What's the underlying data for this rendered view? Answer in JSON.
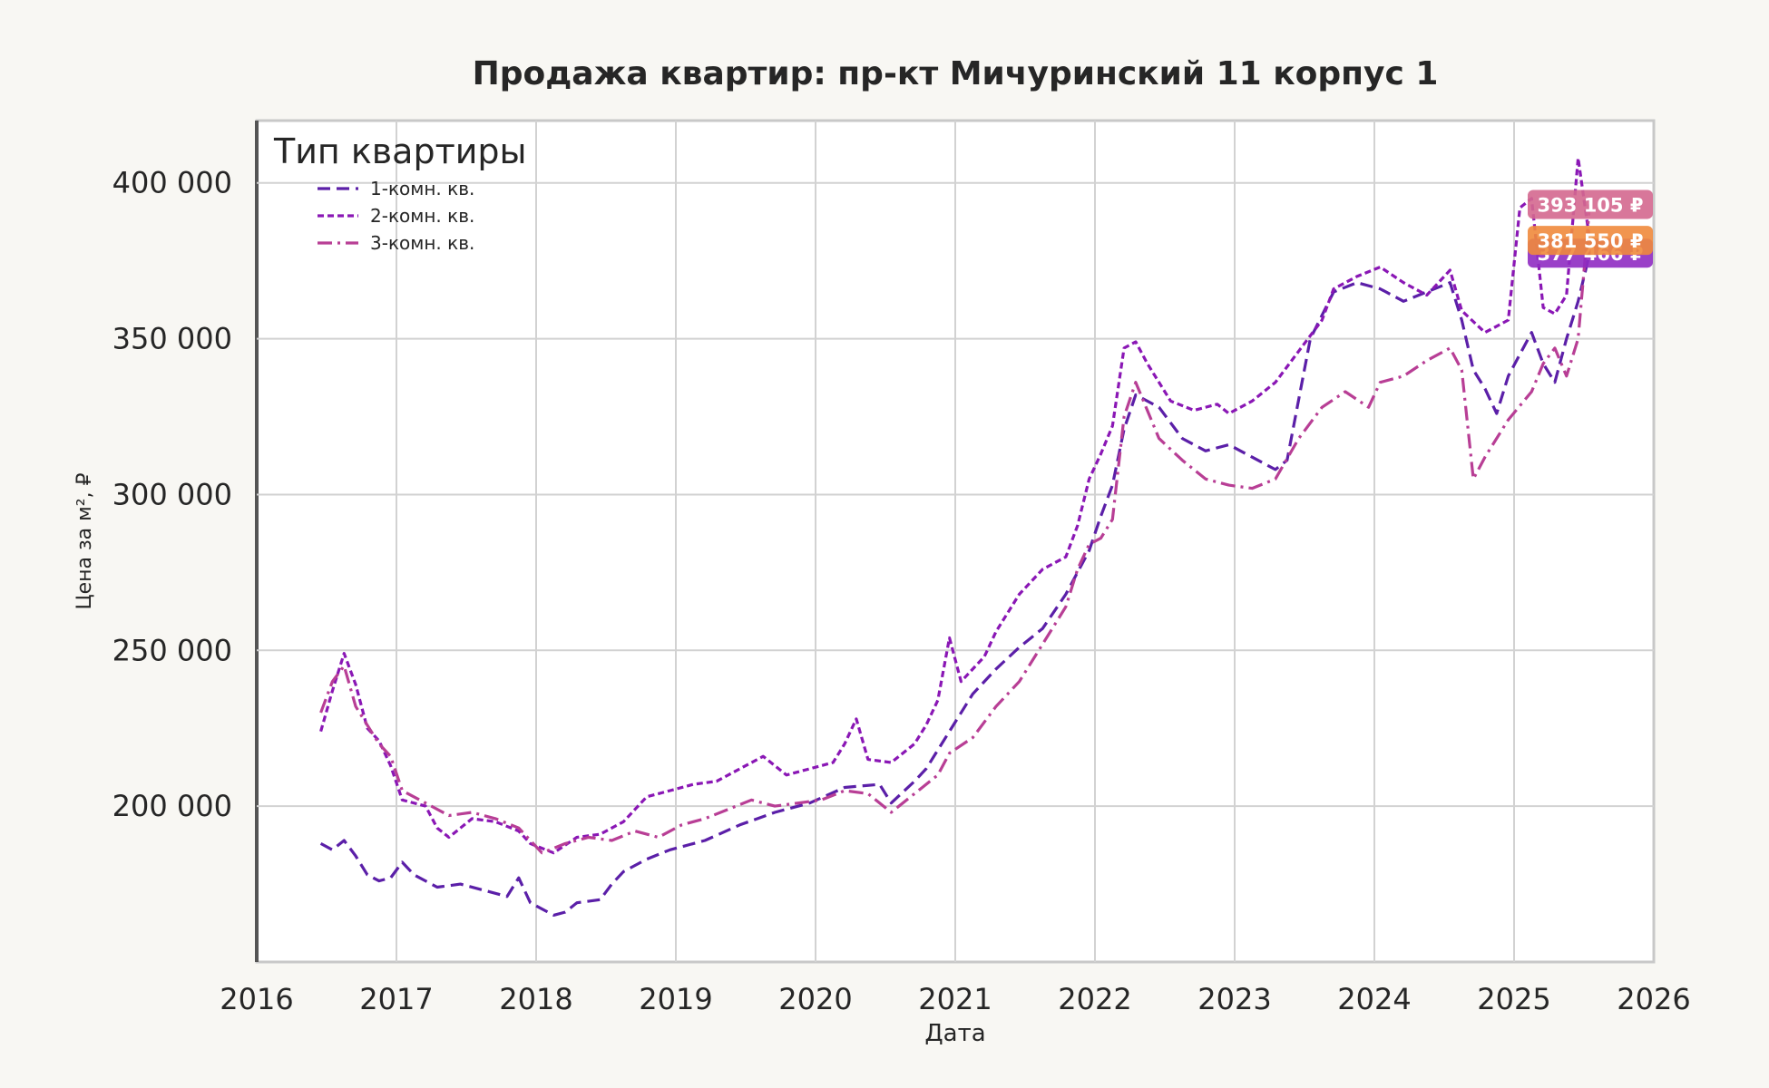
{
  "chart_data": {
    "type": "line",
    "title": "Продажа квартир: пр-кт Мичуринский 11 корпус 1",
    "xlabel": "Дата",
    "ylabel": "Цена за м², ₽",
    "xlim": [
      2016,
      2026
    ],
    "ylim": [
      150000,
      420000
    ],
    "x_ticks": [
      "2016",
      "2017",
      "2018",
      "2019",
      "2020",
      "2021",
      "2022",
      "2023",
      "2024",
      "2025",
      "2026"
    ],
    "y_ticks": [
      200000,
      250000,
      300000,
      350000,
      400000
    ],
    "y_tick_labels": [
      "200 000",
      "250 000",
      "300 000",
      "350 000",
      "400 000"
    ],
    "grid": true,
    "legend": {
      "title": "Тип квартиры",
      "placement": "top-left"
    },
    "series": [
      {
        "name": "1-комн. кв.",
        "color": "#5b1fa8",
        "dash": "dashed",
        "end_label": "377 466 ₽",
        "points": [
          [
            "2016-06",
            188000
          ],
          [
            "2016-07",
            186000
          ],
          [
            "2016-08",
            189000
          ],
          [
            "2016-09",
            184000
          ],
          [
            "2016-10",
            178000
          ],
          [
            "2016-11",
            176000
          ],
          [
            "2016-12",
            177000
          ],
          [
            "2017-01",
            182000
          ],
          [
            "2017-02",
            178000
          ],
          [
            "2017-04",
            174000
          ],
          [
            "2017-06",
            175000
          ],
          [
            "2017-08",
            173000
          ],
          [
            "2017-10",
            171000
          ],
          [
            "2017-11",
            177000
          ],
          [
            "2017-12",
            169000
          ],
          [
            "2018-02",
            165000
          ],
          [
            "2018-03",
            166000
          ],
          [
            "2018-04",
            169000
          ],
          [
            "2018-06",
            170000
          ],
          [
            "2018-07",
            175000
          ],
          [
            "2018-08",
            179000
          ],
          [
            "2018-10",
            183000
          ],
          [
            "2018-12",
            186000
          ],
          [
            "2019-03",
            189000
          ],
          [
            "2019-06",
            194000
          ],
          [
            "2019-09",
            198000
          ],
          [
            "2019-12",
            201000
          ],
          [
            "2020-03",
            206000
          ],
          [
            "2020-06",
            207000
          ],
          [
            "2020-07",
            201000
          ],
          [
            "2020-09",
            208000
          ],
          [
            "2020-10",
            212000
          ],
          [
            "2020-12",
            224000
          ],
          [
            "2021-02",
            236000
          ],
          [
            "2021-04",
            244000
          ],
          [
            "2021-06",
            251000
          ],
          [
            "2021-08",
            257000
          ],
          [
            "2021-10",
            268000
          ],
          [
            "2021-12",
            282000
          ],
          [
            "2022-01",
            293000
          ],
          [
            "2022-02",
            303000
          ],
          [
            "2022-03",
            321000
          ],
          [
            "2022-04",
            332000
          ],
          [
            "2022-06",
            328000
          ],
          [
            "2022-08",
            318000
          ],
          [
            "2022-10",
            314000
          ],
          [
            "2022-12",
            316000
          ],
          [
            "2023-02",
            312000
          ],
          [
            "2023-04",
            308000
          ],
          [
            "2023-05",
            311000
          ],
          [
            "2023-07",
            350000
          ],
          [
            "2023-09",
            365000
          ],
          [
            "2023-11",
            368000
          ],
          [
            "2024-01",
            366000
          ],
          [
            "2024-03",
            362000
          ],
          [
            "2024-05",
            365000
          ],
          [
            "2024-07",
            368000
          ],
          [
            "2024-08",
            356000
          ],
          [
            "2024-09",
            340000
          ],
          [
            "2024-10",
            334000
          ],
          [
            "2024-11",
            326000
          ],
          [
            "2024-12",
            338000
          ],
          [
            "2025-01",
            345000
          ],
          [
            "2025-02",
            352000
          ],
          [
            "2025-03",
            342000
          ],
          [
            "2025-04",
            336000
          ],
          [
            "2025-05",
            350000
          ],
          [
            "2025-06",
            362000
          ],
          [
            "2025-07",
            377466
          ]
        ]
      },
      {
        "name": "2-комн. кв.",
        "color": "#8a17b5",
        "dash": "dotted",
        "end_label": "381 550 ₽",
        "points": [
          [
            "2016-06",
            224000
          ],
          [
            "2016-07",
            237000
          ],
          [
            "2016-08",
            249000
          ],
          [
            "2016-09",
            239000
          ],
          [
            "2016-10",
            225000
          ],
          [
            "2016-11",
            221000
          ],
          [
            "2016-12",
            213000
          ],
          [
            "2017-01",
            202000
          ],
          [
            "2017-03",
            200000
          ],
          [
            "2017-04",
            193000
          ],
          [
            "2017-05",
            190000
          ],
          [
            "2017-07",
            196000
          ],
          [
            "2017-09",
            195000
          ],
          [
            "2017-11",
            192000
          ],
          [
            "2017-12",
            188000
          ],
          [
            "2018-02",
            185000
          ],
          [
            "2018-04",
            190000
          ],
          [
            "2018-06",
            191000
          ],
          [
            "2018-08",
            195000
          ],
          [
            "2018-10",
            203000
          ],
          [
            "2018-12",
            205000
          ],
          [
            "2019-02",
            207000
          ],
          [
            "2019-04",
            208000
          ],
          [
            "2019-06",
            212000
          ],
          [
            "2019-08",
            216000
          ],
          [
            "2019-10",
            210000
          ],
          [
            "2019-12",
            212000
          ],
          [
            "2020-02",
            214000
          ],
          [
            "2020-03",
            220000
          ],
          [
            "2020-04",
            228000
          ],
          [
            "2020-05",
            215000
          ],
          [
            "2020-07",
            214000
          ],
          [
            "2020-09",
            220000
          ],
          [
            "2020-10",
            226000
          ],
          [
            "2020-11",
            234000
          ],
          [
            "2020-12",
            254000
          ],
          [
            "2021-01",
            240000
          ],
          [
            "2021-03",
            248000
          ],
          [
            "2021-04",
            256000
          ],
          [
            "2021-06",
            268000
          ],
          [
            "2021-08",
            276000
          ],
          [
            "2021-10",
            280000
          ],
          [
            "2021-11",
            290000
          ],
          [
            "2021-12",
            305000
          ],
          [
            "2022-01",
            313000
          ],
          [
            "2022-02",
            322000
          ],
          [
            "2022-03",
            347000
          ],
          [
            "2022-04",
            349000
          ],
          [
            "2022-05",
            342000
          ],
          [
            "2022-07",
            330000
          ],
          [
            "2022-09",
            327000
          ],
          [
            "2022-11",
            329000
          ],
          [
            "2022-12",
            326000
          ],
          [
            "2023-02",
            330000
          ],
          [
            "2023-04",
            336000
          ],
          [
            "2023-06",
            346000
          ],
          [
            "2023-08",
            356000
          ],
          [
            "2023-09",
            366000
          ],
          [
            "2023-11",
            370000
          ],
          [
            "2024-01",
            373000
          ],
          [
            "2024-03",
            368000
          ],
          [
            "2024-05",
            364000
          ],
          [
            "2024-07",
            372000
          ],
          [
            "2024-08",
            359000
          ],
          [
            "2024-10",
            352000
          ],
          [
            "2024-12",
            356000
          ],
          [
            "2025-01",
            392000
          ],
          [
            "2025-02",
            395000
          ],
          [
            "2025-03",
            360000
          ],
          [
            "2025-04",
            358000
          ],
          [
            "2025-05",
            364000
          ],
          [
            "2025-06",
            408000
          ],
          [
            "2025-07",
            381550
          ]
        ]
      },
      {
        "name": "3-комн. кв.",
        "color": "#b83e95",
        "dash": "dashdot",
        "end_label": "393 105 ₽",
        "points": [
          [
            "2016-06",
            230000
          ],
          [
            "2016-07",
            240000
          ],
          [
            "2016-08",
            245000
          ],
          [
            "2016-09",
            232000
          ],
          [
            "2016-10",
            226000
          ],
          [
            "2016-11",
            220000
          ],
          [
            "2016-12",
            216000
          ],
          [
            "2017-01",
            205000
          ],
          [
            "2017-03",
            201000
          ],
          [
            "2017-05",
            197000
          ],
          [
            "2017-07",
            198000
          ],
          [
            "2017-09",
            196000
          ],
          [
            "2017-11",
            193000
          ],
          [
            "2018-01",
            185000
          ],
          [
            "2018-03",
            188000
          ],
          [
            "2018-05",
            190000
          ],
          [
            "2018-07",
            189000
          ],
          [
            "2018-09",
            192000
          ],
          [
            "2018-11",
            190000
          ],
          [
            "2019-01",
            194000
          ],
          [
            "2019-03",
            196000
          ],
          [
            "2019-05",
            199000
          ],
          [
            "2019-07",
            202000
          ],
          [
            "2019-09",
            200000
          ],
          [
            "2019-11",
            201000
          ],
          [
            "2020-01",
            202000
          ],
          [
            "2020-03",
            205000
          ],
          [
            "2020-05",
            204000
          ],
          [
            "2020-07",
            198000
          ],
          [
            "2020-09",
            204000
          ],
          [
            "2020-11",
            210000
          ],
          [
            "2020-12",
            217000
          ],
          [
            "2021-02",
            222000
          ],
          [
            "2021-04",
            232000
          ],
          [
            "2021-06",
            240000
          ],
          [
            "2021-08",
            252000
          ],
          [
            "2021-10",
            264000
          ],
          [
            "2021-11",
            276000
          ],
          [
            "2021-12",
            284000
          ],
          [
            "2022-01",
            286000
          ],
          [
            "2022-02",
            292000
          ],
          [
            "2022-03",
            325000
          ],
          [
            "2022-04",
            336000
          ],
          [
            "2022-06",
            318000
          ],
          [
            "2022-08",
            311000
          ],
          [
            "2022-10",
            305000
          ],
          [
            "2022-12",
            303000
          ],
          [
            "2023-02",
            302000
          ],
          [
            "2023-04",
            305000
          ],
          [
            "2023-06",
            318000
          ],
          [
            "2023-08",
            328000
          ],
          [
            "2023-10",
            333000
          ],
          [
            "2023-12",
            328000
          ],
          [
            "2024-01",
            336000
          ],
          [
            "2024-03",
            338000
          ],
          [
            "2024-05",
            343000
          ],
          [
            "2024-07",
            347000
          ],
          [
            "2024-08",
            340000
          ],
          [
            "2024-09",
            305000
          ],
          [
            "2024-10",
            312000
          ],
          [
            "2024-12",
            324000
          ],
          [
            "2025-02",
            333000
          ],
          [
            "2025-03",
            342000
          ],
          [
            "2025-04",
            347000
          ],
          [
            "2025-05",
            338000
          ],
          [
            "2025-06",
            350000
          ],
          [
            "2025-07",
            393105
          ]
        ]
      }
    ]
  }
}
